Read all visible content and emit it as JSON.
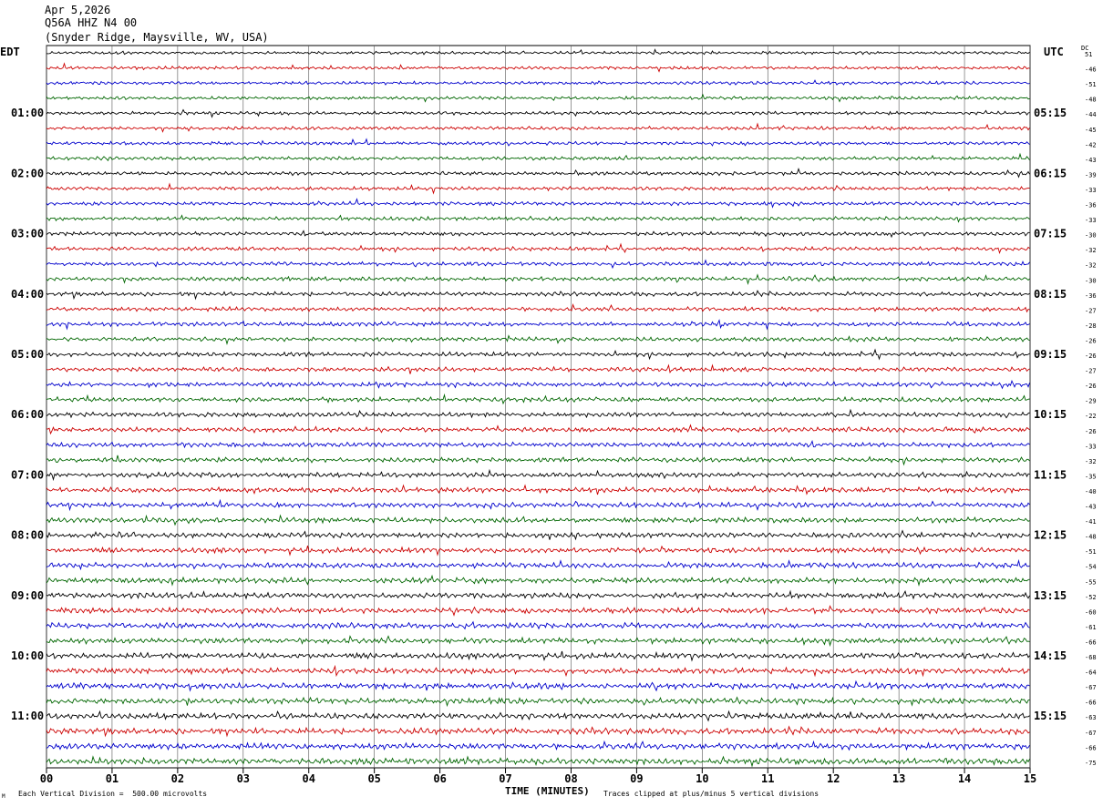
{
  "header": {
    "date": "Apr 5,2026",
    "station": "Q56A HHZ N4 00",
    "location": "(Snyder Ridge, Maysville, WV, USA)"
  },
  "left_tz": "EDT",
  "right_tz": "UTC",
  "dc_label": "DC",
  "footer": {
    "scale": "Each Vertical Division =  500.00 microvolts",
    "clip": "Traces clipped at plus/minus 5 vertical divisions",
    "corner": "M"
  },
  "colors": {
    "trace_cycle": [
      "#000000",
      "#cc0000",
      "#0000cc",
      "#006600"
    ],
    "grid": "#000000"
  },
  "chart_data": {
    "type": "line",
    "xlabel": "TIME (MINUTES)",
    "x_ticks": [
      "00",
      "01",
      "02",
      "03",
      "04",
      "05",
      "06",
      "07",
      "08",
      "09",
      "10",
      "11",
      "12",
      "13",
      "14",
      "15"
    ],
    "xlim": [
      0,
      15
    ],
    "left_time_labels": [
      {
        "label": "01:00",
        "row": 4
      },
      {
        "label": "02:00",
        "row": 8
      },
      {
        "label": "03:00",
        "row": 12
      },
      {
        "label": "04:00",
        "row": 16
      },
      {
        "label": "05:00",
        "row": 20
      },
      {
        "label": "06:00",
        "row": 24
      },
      {
        "label": "07:00",
        "row": 28
      },
      {
        "label": "08:00",
        "row": 32
      },
      {
        "label": "09:00",
        "row": 36
      },
      {
        "label": "10:00",
        "row": 40
      },
      {
        "label": "11:00",
        "row": 44
      }
    ],
    "right_time_labels": [
      {
        "label": "05:15",
        "row": 4
      },
      {
        "label": "06:15",
        "row": 8
      },
      {
        "label": "07:15",
        "row": 12
      },
      {
        "label": "08:15",
        "row": 16
      },
      {
        "label": "09:15",
        "row": 20
      },
      {
        "label": "10:15",
        "row": 24
      },
      {
        "label": "11:15",
        "row": 28
      },
      {
        "label": "12:15",
        "row": 32
      },
      {
        "label": "13:15",
        "row": 36
      },
      {
        "label": "14:15",
        "row": 40
      },
      {
        "label": "15:15",
        "row": 44
      }
    ],
    "dc_offsets": [
      "51",
      "-46",
      "-51",
      "-48",
      "-44",
      "-45",
      "-42",
      "-43",
      "-39",
      "-33",
      "-36",
      "-33",
      "-30",
      "-32",
      "-32",
      "-30",
      "-36",
      "-27",
      "-28",
      "-26",
      "-26",
      "-27",
      "-26",
      "-29",
      "-22",
      "-26",
      "-33",
      "-32",
      "-35",
      "-40",
      "-43",
      "-41",
      "-48",
      "-51",
      "-54",
      "-55",
      "-52",
      "-60",
      "-61",
      "-66",
      "-68",
      "-64",
      "-67",
      "-66",
      "-63",
      "-67",
      "-66",
      "-75"
    ]
  }
}
